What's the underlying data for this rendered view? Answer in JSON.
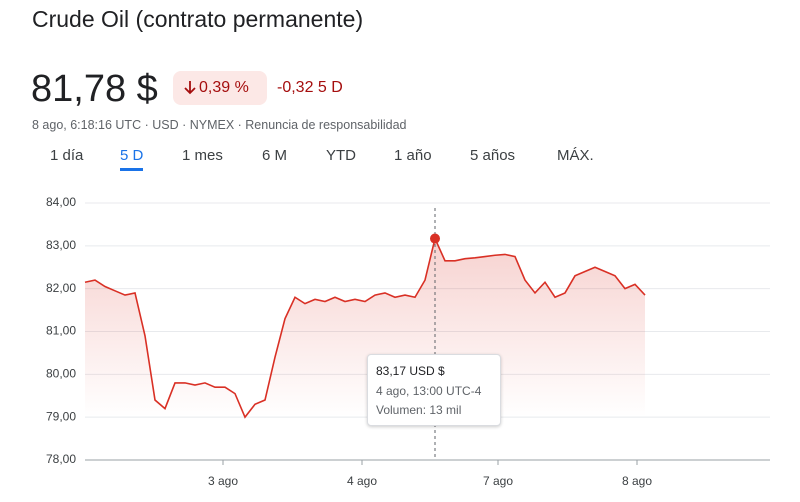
{
  "header": {
    "title": "Crude Oil (contrato permanente)",
    "price": "81,78 $",
    "change_pct": "0,39 %",
    "change": "-0,32",
    "period": "5 D",
    "meta": "8 ago, 6:18:16 UTC · USD · NYMEX · ",
    "disclaimer": "Renuncia de responsabilidad"
  },
  "tabs": [
    "1 día",
    "5 D",
    "1 mes",
    "6 M",
    "YTD",
    "1 año",
    "5 años",
    "MÁX."
  ],
  "tooltip": {
    "price": "83,17 USD $",
    "time": "4 ago, 13:00 UTC-4",
    "volume": "Volumen: 13 mil"
  },
  "chart_data": {
    "type": "line",
    "x": [
      0,
      1,
      2,
      3,
      4,
      5,
      6,
      7,
      8,
      9,
      10,
      11,
      12,
      13,
      14,
      15,
      16,
      17,
      18,
      19,
      20,
      21,
      22,
      23,
      24,
      25,
      26,
      27,
      28,
      29,
      30,
      31,
      32,
      33,
      34,
      35,
      36,
      37,
      38,
      39,
      40,
      41,
      42,
      43,
      44,
      45,
      46,
      47,
      48,
      49,
      50,
      51,
      52,
      53,
      54,
      55,
      56
    ],
    "series": [
      {
        "name": "Crude Oil",
        "color": "#d93025",
        "values": [
          82.15,
          82.2,
          82.05,
          81.95,
          81.85,
          81.9,
          80.9,
          79.4,
          79.2,
          79.8,
          79.8,
          79.75,
          79.8,
          79.7,
          79.7,
          79.55,
          79.0,
          79.3,
          79.4,
          80.4,
          81.3,
          81.8,
          81.65,
          81.75,
          81.7,
          81.8,
          81.7,
          81.75,
          81.7,
          81.85,
          81.9,
          81.8,
          81.85,
          81.8,
          82.2,
          83.17,
          82.65,
          82.65,
          82.7,
          82.72,
          82.75,
          82.78,
          82.8,
          82.75,
          82.2,
          81.9,
          82.15,
          81.8,
          81.9,
          82.3,
          82.4,
          82.5,
          82.4,
          82.3,
          82.0,
          82.1,
          81.85
        ]
      }
    ],
    "xlim": [
      0,
      68.5
    ],
    "xticks": [
      {
        "value": 13.8,
        "label": "3 ago"
      },
      {
        "value": 27.7,
        "label": "4 ago"
      },
      {
        "value": 41.3,
        "label": "7 ago"
      },
      {
        "value": 55.2,
        "label": "8 ago"
      }
    ],
    "ylim": [
      78,
      84
    ],
    "yticks": [
      {
        "value": 78,
        "label": "78,00"
      },
      {
        "value": 79,
        "label": "79,00"
      },
      {
        "value": 80,
        "label": "80,00"
      },
      {
        "value": 81,
        "label": "81,00"
      },
      {
        "value": 82,
        "label": "82,00"
      },
      {
        "value": 83,
        "label": "83,00"
      },
      {
        "value": 84,
        "label": "84,00"
      }
    ],
    "grid": true
  }
}
